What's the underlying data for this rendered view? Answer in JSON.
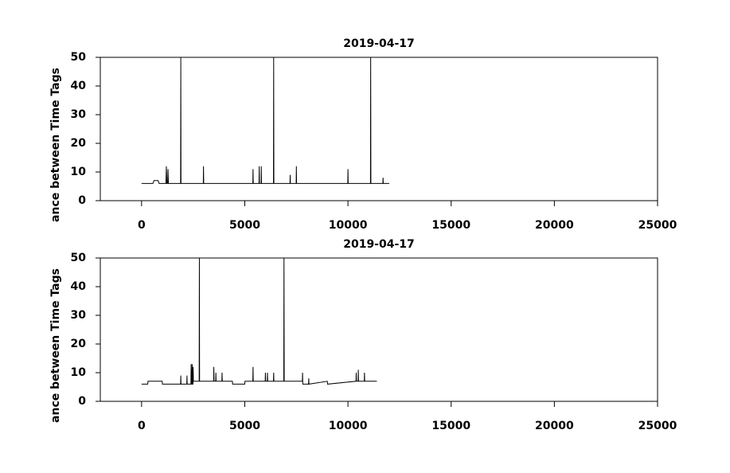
{
  "chart_data": [
    {
      "type": "line",
      "title": "2019-04-17",
      "y_label": "ance between Time Tags",
      "color": "#000000",
      "xlim": [
        -2000,
        25000
      ],
      "ylim": [
        0,
        50
      ],
      "xticks": [
        0,
        5000,
        10000,
        15000,
        20000,
        25000
      ],
      "yticks": [
        0,
        10,
        20,
        30,
        40,
        50
      ],
      "x": [
        0,
        550,
        600,
        800,
        850,
        1180,
        1200,
        1220,
        1260,
        1280,
        1300,
        1890,
        1900,
        1910,
        2990,
        3000,
        3010,
        5390,
        5400,
        5410,
        5690,
        5700,
        5710,
        5790,
        5800,
        5810,
        6390,
        6400,
        6410,
        7190,
        7200,
        7210,
        7490,
        7500,
        7510,
        9990,
        10000,
        10010,
        11090,
        11100,
        11110,
        11690,
        11700,
        11710,
        12000
      ],
      "values": [
        6,
        6,
        7,
        7,
        6,
        6,
        12,
        6,
        6,
        11,
        6,
        6,
        50,
        6,
        6,
        12,
        6,
        6,
        11,
        6,
        6,
        12,
        6,
        6,
        12,
        6,
        6,
        50,
        6,
        6,
        9,
        6,
        6,
        12,
        6,
        6,
        11,
        6,
        6,
        50,
        6,
        6,
        8,
        6,
        6
      ]
    },
    {
      "type": "line",
      "title": "2019-04-17",
      "y_label": "ance between Time Tags",
      "color": "#000000",
      "xlim": [
        -2000,
        25000
      ],
      "ylim": [
        0,
        50
      ],
      "xticks": [
        0,
        5000,
        10000,
        15000,
        20000,
        25000
      ],
      "yticks": [
        0,
        10,
        20,
        30,
        40,
        50
      ],
      "x": [
        0,
        300,
        310,
        1000,
        1010,
        1890,
        1900,
        1910,
        2190,
        2200,
        2210,
        2390,
        2400,
        2420,
        2440,
        2450,
        2470,
        2490,
        2500,
        2510,
        2790,
        2800,
        2810,
        3490,
        3500,
        3510,
        3590,
        3600,
        3610,
        3890,
        3900,
        3910,
        4400,
        4410,
        5000,
        5010,
        5390,
        5400,
        5410,
        5990,
        6000,
        6010,
        6090,
        6100,
        6110,
        6390,
        6400,
        6410,
        6890,
        6900,
        6910,
        7790,
        7800,
        7810,
        8090,
        8100,
        8110,
        9000,
        9010,
        10390,
        10400,
        10410,
        10490,
        10500,
        10510,
        10790,
        10800,
        10810,
        11400
      ],
      "values": [
        6,
        6,
        7,
        7,
        6,
        6,
        9,
        6,
        6,
        9,
        6,
        6,
        13,
        6,
        6,
        13,
        6,
        6,
        12,
        7,
        7,
        50,
        7,
        7,
        12,
        7,
        7,
        10,
        7,
        7,
        10,
        7,
        7,
        6,
        6,
        7,
        7,
        12,
        7,
        7,
        10,
        7,
        7,
        10,
        7,
        7,
        10,
        7,
        7,
        50,
        7,
        7,
        10,
        6,
        6,
        8,
        6,
        7,
        6,
        7,
        10,
        7,
        7,
        11,
        7,
        7,
        10,
        7,
        7
      ]
    }
  ]
}
